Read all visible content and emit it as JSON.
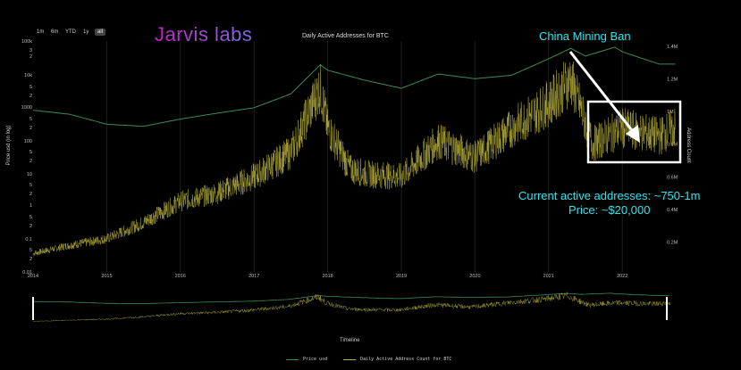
{
  "logo_text": "Jarvis labs",
  "range_buttons": [
    "1m",
    "6m",
    "YTD",
    "1y",
    "all"
  ],
  "active_range": "all",
  "annotations": {
    "event": "China Mining Ban",
    "current_addresses": "Current active addresses: ~750-1m",
    "current_price": "Price: ~$20,000"
  },
  "colors": {
    "price": "#3c8a5a",
    "addresses": "#b9b13a",
    "annotation": "#2fe5ee",
    "box": "#ffffff"
  },
  "navigator_label": "Timeline",
  "chart_data": {
    "type": "line",
    "title": "Daily Active Addresses for BTC",
    "xlabel": "",
    "ylabel_left": "Price usd (in log)",
    "ylabel_right": "Address Count",
    "x_ticks": [
      "2014",
      "2015",
      "2016",
      "2017",
      "2018",
      "2019",
      "2020",
      "2021",
      "2022"
    ],
    "y_left_ticks": [
      "100k",
      "3",
      "2",
      "10k",
      "5",
      "2",
      "1000",
      "5",
      "2",
      "100",
      "5",
      "2",
      "10",
      "5",
      "2",
      "1",
      "5",
      "2",
      "0.1",
      "5",
      "2",
      "0.01"
    ],
    "y_right_ticks": [
      "1.4M",
      "1.2M",
      "1M",
      "0.8M",
      "0.6M",
      "0.4M",
      "0.2M"
    ],
    "ylim_right": [
      0,
      1400000
    ],
    "series": [
      {
        "name": "Price usd",
        "axis": "left-log",
        "x": [
          2014.0,
          2014.5,
          2015.0,
          2015.5,
          2016.0,
          2016.5,
          2017.0,
          2017.5,
          2017.9,
          2018.0,
          2018.5,
          2019.0,
          2019.5,
          2020.0,
          2020.5,
          2021.0,
          2021.3,
          2021.5,
          2021.9,
          2022.0,
          2022.5,
          2022.7
        ],
        "values": [
          800,
          600,
          300,
          260,
          430,
          650,
          950,
          2500,
          19000,
          13000,
          6500,
          3700,
          10000,
          7200,
          9200,
          29000,
          60000,
          35000,
          65000,
          47000,
          20000,
          20000
        ]
      },
      {
        "name": "Daily Active Address Count for BTC",
        "axis": "right",
        "x": [
          2014.0,
          2014.5,
          2015.0,
          2015.5,
          2016.0,
          2016.5,
          2017.0,
          2017.5,
          2017.9,
          2018.0,
          2018.3,
          2018.5,
          2019.0,
          2019.5,
          2020.0,
          2020.5,
          2021.0,
          2021.3,
          2021.6,
          2022.0,
          2022.5,
          2022.7
        ],
        "values": [
          130000,
          180000,
          220000,
          320000,
          450000,
          500000,
          600000,
          750000,
          1150000,
          900000,
          650000,
          620000,
          600000,
          820000,
          720000,
          900000,
          1050000,
          1200000,
          800000,
          900000,
          850000,
          900000
        ]
      }
    ],
    "legend": [
      "Price usd",
      "Daily Active Address Count for BTC"
    ]
  }
}
